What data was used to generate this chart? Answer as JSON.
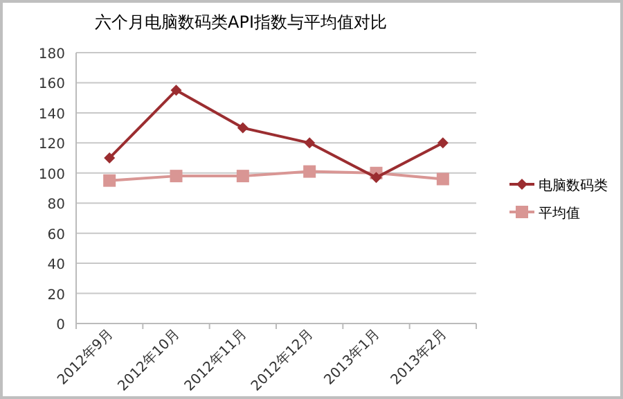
{
  "chart_data": {
    "type": "line",
    "title": "六个月电脑数码类API指数与平均值对比",
    "categories": [
      "2012年9月",
      "2012年10月",
      "2012年11月",
      "2012年12月",
      "2013年1月",
      "2013年2月"
    ],
    "series": [
      {
        "name": "电脑数码类",
        "color": "#9b2d30",
        "marker": "diamond",
        "values": [
          110,
          155,
          130,
          120,
          97,
          120
        ]
      },
      {
        "name": "平均值",
        "color": "#d99694",
        "marker": "square",
        "values": [
          95,
          98,
          98,
          101,
          100,
          96
        ]
      }
    ],
    "ylim": [
      0,
      180
    ],
    "yticks": [
      0,
      20,
      40,
      60,
      80,
      100,
      120,
      140,
      160,
      180
    ],
    "grid": "y",
    "legend": "right"
  }
}
